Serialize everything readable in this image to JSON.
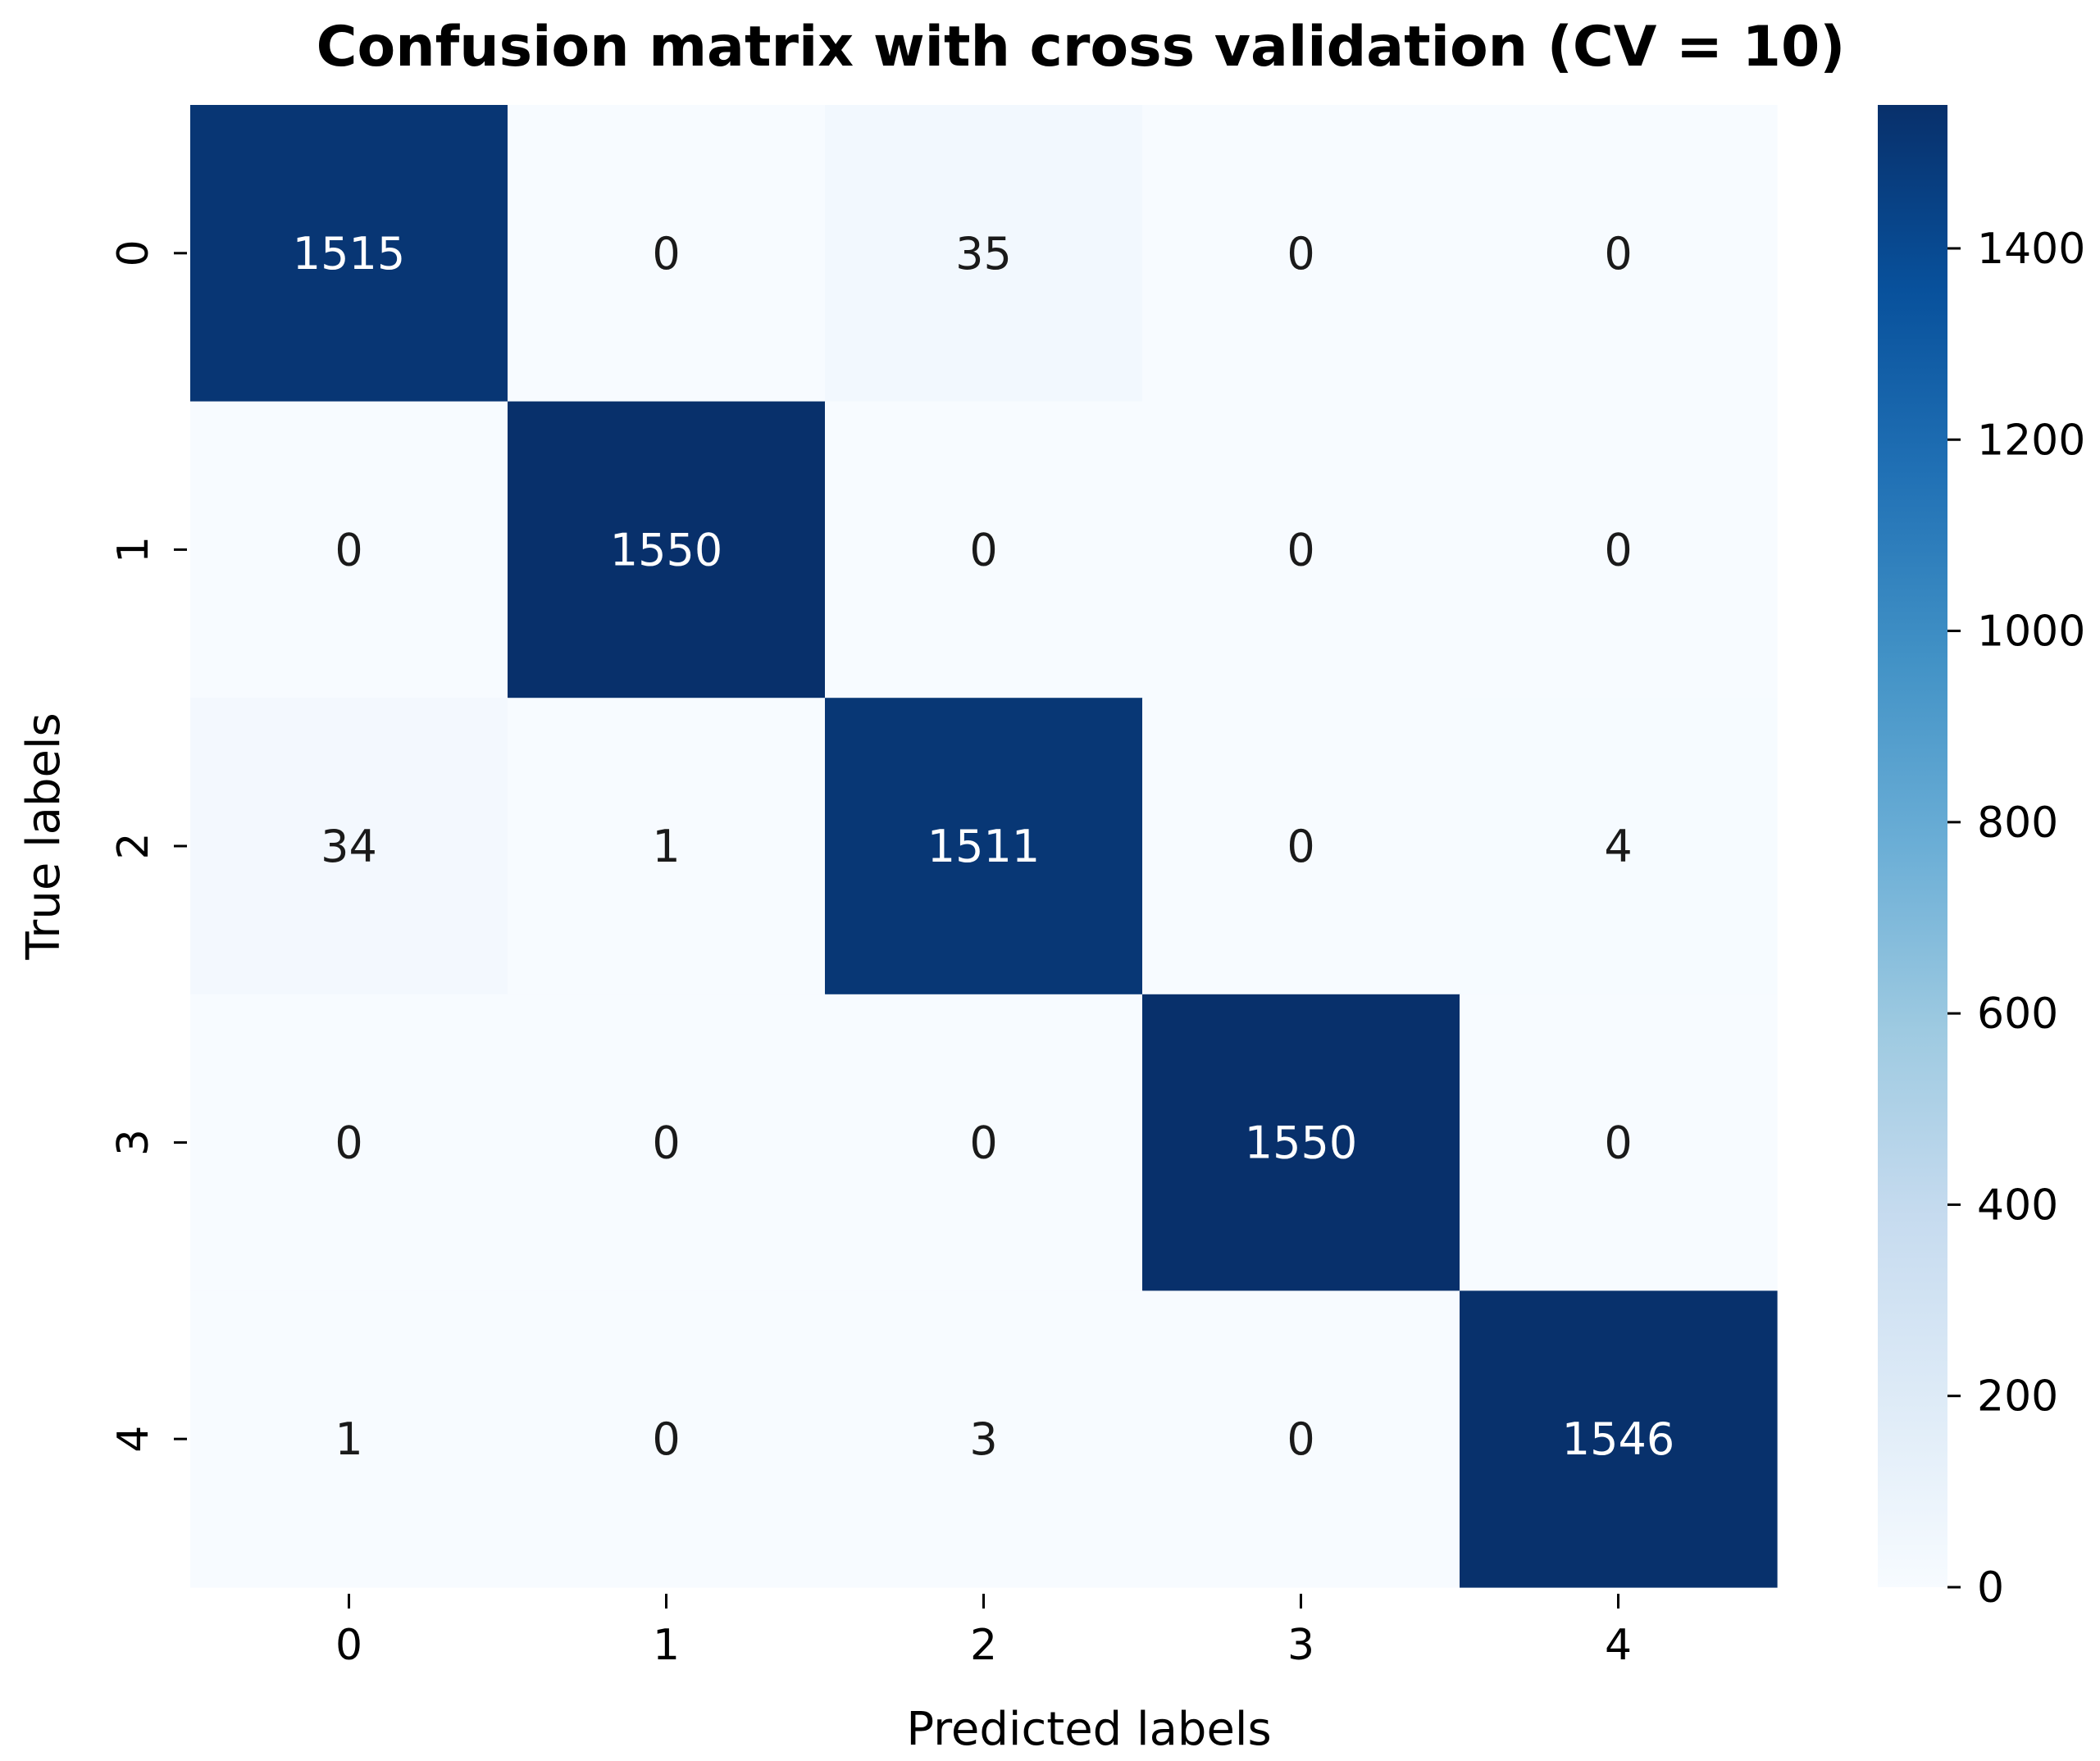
{
  "chart_data": {
    "type": "heatmap",
    "title": "Confusion matrix with cross validation (CV = 10)",
    "xlabel": "Predicted labels",
    "ylabel": "True labels",
    "x_categories": [
      "0",
      "1",
      "2",
      "3",
      "4"
    ],
    "y_categories": [
      "0",
      "1",
      "2",
      "3",
      "4"
    ],
    "values": [
      [
        1515,
        0,
        35,
        0,
        0
      ],
      [
        0,
        1550,
        0,
        0,
        0
      ],
      [
        34,
        1,
        1511,
        0,
        4
      ],
      [
        0,
        0,
        0,
        1550,
        0
      ],
      [
        1,
        0,
        3,
        0,
        1546
      ]
    ],
    "colormap": "Blues",
    "color_low": "#f7fbff",
    "color_high": "#08306b",
    "colorbar": {
      "range": [
        0,
        1550
      ],
      "ticks": [
        0,
        200,
        400,
        600,
        800,
        1000,
        1200,
        1400
      ]
    },
    "grid": false
  }
}
